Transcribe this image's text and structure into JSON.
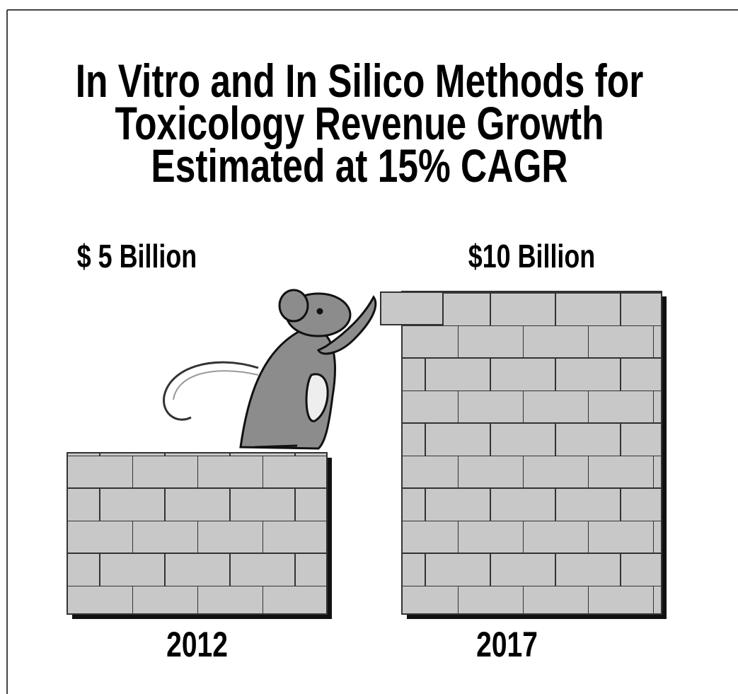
{
  "chart_data": {
    "type": "bar",
    "title": [
      "In Vitro and In Silico Methods for",
      "Toxicology Revenue Growth",
      "Estimated at 15% CAGR"
    ],
    "categories": [
      "2012",
      "2017"
    ],
    "values": [
      5,
      10
    ],
    "value_labels": [
      "$ 5 Billion",
      "$10 Billion"
    ],
    "color": "#c8c8c8"
  }
}
